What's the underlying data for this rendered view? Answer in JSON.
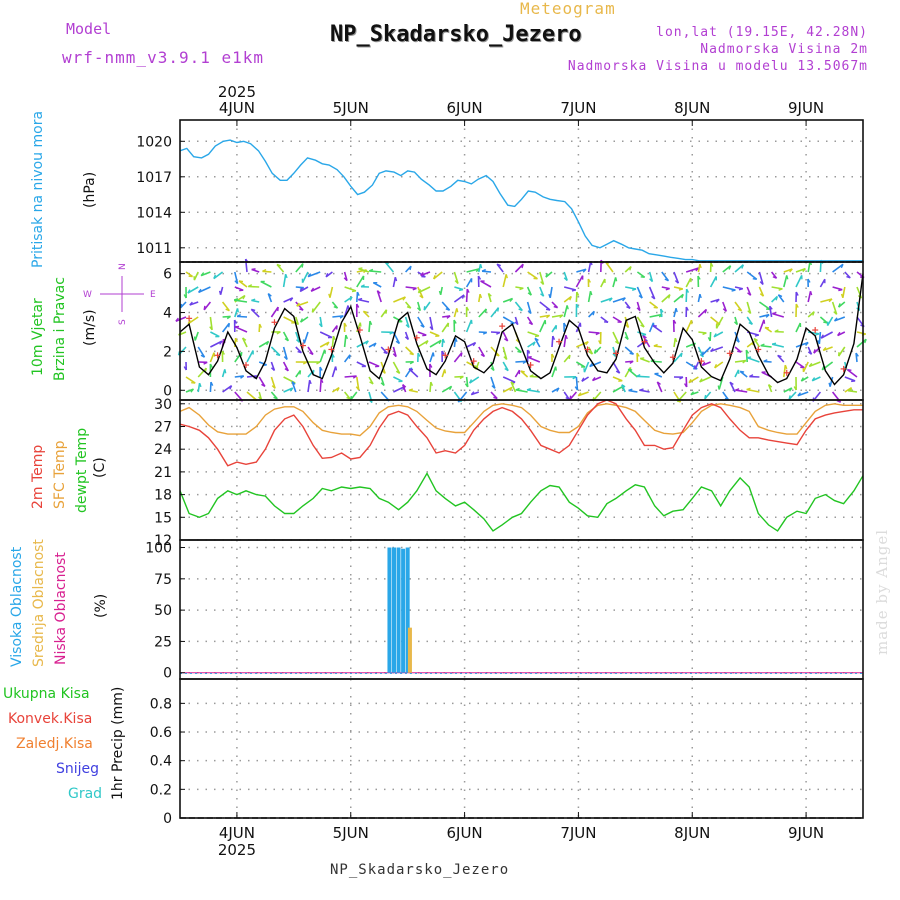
{
  "header": {
    "model_label": "Model",
    "model_name": "wrf-nmm_v3.9.1 e1km",
    "meteogram_title": "Meteogram",
    "station_name": "NP_Skadarsko_Jezero",
    "lonlat": "lon,lat (19.15E, 42.28N)",
    "altitude": "Nadmorska Visina 2m",
    "model_altitude": "Nadmorska Visina u modelu 13.5067m"
  },
  "footer": {
    "station_name": "NP_Skadarsko_Jezero",
    "credit": "made by Angel"
  },
  "colors": {
    "pressure": "#2aa7e8",
    "wind_speed": "#000000",
    "wind_gust_marker": "#e8433a",
    "temp_2m": "#e8433a",
    "temp_sfc": "#e8a23a",
    "dewpoint": "#22c422",
    "cloud_high": "#2aa7e8",
    "cloud_mid": "#e8b84b",
    "cloud_low": "#d82090",
    "precip_total": "#22c422",
    "precip_conv": "#e8433a",
    "precip_frozen": "#f08030",
    "precip_snow": "#4040e0",
    "precip_hail": "#30c8c8",
    "grid": "#9a9a9a"
  },
  "chart_data": [
    {
      "type": "line",
      "panel": "pressure",
      "ylabel": "(hPa)",
      "title_rot": "Pritisak na nivou mora",
      "yticks": [
        1011,
        1014,
        1017,
        1020
      ],
      "ylim": [
        1009.8,
        1021.8
      ],
      "grid": true,
      "x_day_ticks": [
        "4JUN",
        "5JUN",
        "6JUN",
        "7JUN",
        "8JUN",
        "9JUN"
      ],
      "x_year": "2025",
      "x_range_days": [
        3.5,
        9.5
      ],
      "series": [
        {
          "color_key": "pressure",
          "x": [
            3.5,
            3.56,
            3.62,
            3.69,
            3.75,
            3.81,
            3.88,
            3.94,
            4.0,
            4.06,
            4.12,
            4.19,
            4.25,
            4.31,
            4.38,
            4.44,
            4.5,
            4.56,
            4.62,
            4.69,
            4.75,
            4.81,
            4.88,
            4.94,
            5.0,
            5.06,
            5.12,
            5.19,
            5.25,
            5.31,
            5.38,
            5.44,
            5.5,
            5.56,
            5.62,
            5.69,
            5.75,
            5.81,
            5.88,
            5.94,
            6.0,
            6.06,
            6.12,
            6.19,
            6.25,
            6.31,
            6.38,
            6.44,
            6.5,
            6.56,
            6.62,
            6.69,
            6.75,
            6.81,
            6.88,
            6.94,
            7.0,
            7.06,
            7.12,
            7.19,
            7.25,
            7.31,
            7.38,
            7.44,
            7.5,
            7.56,
            7.62,
            7.69,
            7.75,
            7.81,
            7.88,
            7.94,
            8.0,
            8.06,
            8.12,
            8.19,
            8.25,
            8.31,
            8.38,
            8.44,
            8.5,
            8.56,
            8.62,
            8.69,
            8.75,
            8.81,
            8.88,
            8.94,
            9.0,
            9.06,
            9.12,
            9.19,
            9.25,
            9.31,
            9.38,
            9.44,
            9.5
          ],
          "y": [
            1019.2,
            1019.4,
            1018.7,
            1018.6,
            1018.9,
            1019.6,
            1020.0,
            1020.1,
            1019.9,
            1020.0,
            1019.8,
            1019.2,
            1018.3,
            1017.3,
            1016.7,
            1016.7,
            1017.3,
            1018.0,
            1018.6,
            1018.4,
            1018.1,
            1018.0,
            1017.6,
            1017.0,
            1016.2,
            1015.5,
            1015.7,
            1016.3,
            1017.3,
            1017.5,
            1017.4,
            1017.1,
            1017.5,
            1017.4,
            1016.8,
            1016.3,
            1015.8,
            1015.8,
            1016.2,
            1016.7,
            1016.6,
            1016.4,
            1016.8,
            1017.1,
            1016.6,
            1015.6,
            1014.6,
            1014.5,
            1015.1,
            1015.8,
            1015.7,
            1015.3,
            1015.1,
            1015.0,
            1014.9,
            1014.3,
            1013.2,
            1012.0,
            1011.2,
            1011.0,
            1011.3,
            1011.6,
            1011.3,
            1011.0,
            1010.9,
            1010.8,
            1010.5,
            1010.4,
            1010.3,
            1010.2,
            1010.1,
            1010.0,
            1010.0,
            1009.9,
            1009.9,
            1009.9,
            1009.9,
            1009.9,
            1009.9,
            1009.9,
            1009.9,
            1009.9,
            1009.9,
            1009.9,
            1009.9,
            1009.9,
            1009.9,
            1009.9,
            1009.9,
            1009.9,
            1009.9,
            1009.9,
            1009.9,
            1009.9,
            1009.9,
            1009.9,
            1009.9
          ]
        }
      ]
    },
    {
      "type": "line",
      "panel": "wind",
      "ylabel": "(m/s)",
      "title_rot_1": "10m Vjetar",
      "title_rot_2": "Brzina i Pravac",
      "compass_top": "N",
      "compass_bottom": "S",
      "compass_left": "W",
      "compass_right": "E",
      "yticks": [
        0,
        2,
        4,
        6
      ],
      "ylim": [
        -0.5,
        6.6
      ],
      "grid": true,
      "series": [
        {
          "color_key": "wind_speed",
          "x": [
            3.5,
            3.58,
            3.67,
            3.75,
            3.83,
            3.92,
            4.0,
            4.08,
            4.17,
            4.25,
            4.33,
            4.42,
            4.5,
            4.58,
            4.67,
            4.75,
            4.83,
            4.92,
            5.0,
            5.08,
            5.17,
            5.25,
            5.33,
            5.42,
            5.5,
            5.58,
            5.67,
            5.75,
            5.83,
            5.92,
            6.0,
            6.08,
            6.17,
            6.25,
            6.33,
            6.42,
            6.5,
            6.58,
            6.67,
            6.75,
            6.83,
            6.92,
            7.0,
            7.08,
            7.17,
            7.25,
            7.33,
            7.42,
            7.5,
            7.58,
            7.67,
            7.75,
            7.83,
            7.92,
            8.0,
            8.08,
            8.17,
            8.25,
            8.33,
            8.42,
            8.5,
            8.58,
            8.67,
            8.75,
            8.83,
            8.92,
            9.0,
            9.08,
            9.17,
            9.25,
            9.33,
            9.42,
            9.5
          ],
          "y": [
            3.0,
            3.4,
            1.2,
            0.8,
            1.5,
            3.0,
            2.2,
            1.0,
            0.6,
            1.5,
            3.2,
            4.2,
            3.8,
            2.0,
            0.8,
            0.6,
            1.8,
            3.5,
            4.3,
            2.8,
            1.0,
            0.6,
            1.8,
            3.6,
            4.0,
            2.4,
            1.1,
            0.8,
            1.5,
            2.8,
            2.5,
            1.2,
            0.9,
            1.4,
            3.0,
            3.4,
            2.2,
            1.0,
            0.6,
            0.9,
            2.2,
            3.6,
            3.2,
            1.8,
            1.0,
            0.9,
            1.6,
            3.6,
            3.8,
            2.2,
            1.4,
            0.9,
            1.4,
            3.2,
            2.6,
            1.2,
            0.7,
            0.5,
            1.6,
            3.4,
            3.0,
            1.8,
            0.8,
            0.4,
            0.6,
            1.6,
            3.2,
            2.8,
            1.0,
            0.3,
            0.8,
            2.4,
            6.0
          ]
        }
      ]
    },
    {
      "type": "line",
      "panel": "temperature",
      "ylabel": "(C)",
      "title_rot_1": "2m Temp",
      "title_rot_2": "SFC Temp",
      "title_rot_3": "dewpt Temp",
      "yticks": [
        12,
        15,
        18,
        21,
        24,
        27,
        30
      ],
      "ylim": [
        12,
        30.5
      ],
      "grid": true,
      "series": [
        {
          "color_key": "temp_2m",
          "x": [
            3.5,
            3.58,
            3.67,
            3.75,
            3.83,
            3.92,
            4.0,
            4.08,
            4.17,
            4.25,
            4.33,
            4.42,
            4.5,
            4.58,
            4.67,
            4.75,
            4.83,
            4.92,
            5.0,
            5.08,
            5.17,
            5.25,
            5.33,
            5.42,
            5.5,
            5.58,
            5.67,
            5.75,
            5.83,
            5.92,
            6.0,
            6.08,
            6.17,
            6.25,
            6.33,
            6.42,
            6.5,
            6.58,
            6.67,
            6.75,
            6.83,
            6.92,
            7.0,
            7.08,
            7.17,
            7.25,
            7.33,
            7.42,
            7.5,
            7.58,
            7.67,
            7.75,
            7.83,
            7.92,
            8.0,
            8.08,
            8.17,
            8.25,
            8.33,
            8.42,
            8.5,
            8.58,
            8.67,
            8.75,
            8.83,
            8.92,
            9.0,
            9.08,
            9.17,
            9.25,
            9.33,
            9.42,
            9.5
          ],
          "y": [
            27.3,
            27.0,
            26.5,
            25.5,
            24.0,
            21.8,
            22.3,
            22.0,
            22.3,
            24.0,
            26.5,
            28.0,
            28.5,
            27.0,
            24.5,
            22.8,
            22.9,
            23.5,
            22.7,
            22.9,
            24.5,
            26.8,
            28.5,
            29.0,
            28.5,
            27.0,
            25.5,
            23.5,
            23.8,
            23.5,
            24.5,
            26.5,
            28.0,
            29.0,
            29.5,
            29.0,
            28.0,
            26.5,
            24.5,
            24.0,
            23.5,
            24.5,
            26.5,
            28.5,
            30.0,
            30.5,
            30.0,
            28.0,
            26.5,
            24.5,
            24.5,
            24.0,
            24.2,
            26.5,
            28.5,
            29.5,
            30.0,
            29.5,
            28.0,
            26.5,
            25.5,
            25.5,
            25.2,
            25.0,
            24.8,
            24.6,
            26.5,
            28.0,
            28.5,
            28.8,
            29.0,
            29.2,
            29.2
          ]
        },
        {
          "color_key": "temp_sfc",
          "x": [
            3.5,
            3.58,
            3.67,
            3.75,
            3.83,
            3.92,
            4.0,
            4.08,
            4.17,
            4.25,
            4.33,
            4.42,
            4.5,
            4.58,
            4.67,
            4.75,
            4.83,
            4.92,
            5.0,
            5.08,
            5.17,
            5.25,
            5.33,
            5.42,
            5.5,
            5.58,
            5.67,
            5.75,
            5.83,
            5.92,
            6.0,
            6.08,
            6.17,
            6.25,
            6.33,
            6.42,
            6.5,
            6.58,
            6.67,
            6.75,
            6.83,
            6.92,
            7.0,
            7.08,
            7.17,
            7.25,
            7.33,
            7.42,
            7.5,
            7.58,
            7.67,
            7.75,
            7.83,
            7.92,
            8.0,
            8.08,
            8.17,
            8.25,
            8.33,
            8.42,
            8.5,
            8.58,
            8.67,
            8.75,
            8.83,
            8.92,
            9.0,
            9.08,
            9.17,
            9.25,
            9.33,
            9.42,
            9.5
          ],
          "y": [
            29.0,
            29.5,
            28.5,
            27.2,
            26.3,
            26.0,
            26.0,
            26.0,
            27.0,
            28.5,
            29.3,
            29.6,
            29.6,
            29.0,
            27.5,
            26.5,
            26.2,
            26.0,
            26.0,
            25.8,
            27.0,
            28.8,
            29.6,
            29.8,
            29.6,
            29.0,
            27.8,
            26.8,
            26.4,
            26.2,
            26.2,
            27.5,
            29.0,
            29.8,
            30.0,
            29.8,
            29.5,
            28.5,
            27.0,
            26.5,
            26.2,
            26.2,
            27.0,
            28.8,
            29.8,
            30.0,
            29.8,
            29.5,
            29.0,
            27.8,
            26.5,
            26.1,
            26.0,
            26.2,
            27.5,
            29.0,
            29.8,
            30.0,
            29.8,
            29.5,
            29.0,
            27.0,
            26.5,
            26.2,
            26.0,
            26.0,
            27.5,
            29.0,
            29.8,
            30.0,
            29.8,
            29.8,
            29.8
          ]
        },
        {
          "color_key": "dewpoint",
          "x": [
            3.5,
            3.58,
            3.67,
            3.75,
            3.83,
            3.92,
            4.0,
            4.08,
            4.17,
            4.25,
            4.33,
            4.42,
            4.5,
            4.58,
            4.67,
            4.75,
            4.83,
            4.92,
            5.0,
            5.08,
            5.17,
            5.25,
            5.33,
            5.42,
            5.5,
            5.58,
            5.67,
            5.75,
            5.83,
            5.92,
            6.0,
            6.08,
            6.17,
            6.25,
            6.33,
            6.42,
            6.5,
            6.58,
            6.67,
            6.75,
            6.83,
            6.92,
            7.0,
            7.08,
            7.17,
            7.25,
            7.33,
            7.42,
            7.5,
            7.58,
            7.67,
            7.75,
            7.83,
            7.92,
            8.0,
            8.08,
            8.17,
            8.25,
            8.33,
            8.42,
            8.5,
            8.58,
            8.67,
            8.75,
            8.83,
            8.92,
            9.0,
            9.08,
            9.17,
            9.25,
            9.33,
            9.42,
            9.5
          ],
          "y": [
            18.5,
            15.5,
            15.0,
            15.5,
            17.5,
            18.5,
            18.0,
            18.5,
            18.0,
            17.8,
            16.5,
            15.5,
            15.5,
            16.5,
            17.5,
            18.8,
            18.5,
            19.0,
            18.8,
            19.0,
            18.8,
            17.5,
            17.0,
            16.0,
            17.0,
            18.5,
            20.8,
            18.5,
            17.5,
            16.5,
            17.0,
            16.0,
            14.8,
            13.2,
            14.0,
            15.0,
            15.5,
            17.0,
            18.5,
            19.2,
            19.0,
            17.0,
            16.2,
            15.2,
            15.0,
            16.8,
            17.5,
            18.5,
            19.3,
            19.0,
            16.5,
            15.2,
            15.8,
            16.0,
            17.5,
            19.0,
            18.5,
            16.5,
            18.5,
            20.2,
            19.0,
            15.5,
            14.0,
            13.2,
            15.0,
            15.8,
            15.5,
            17.5,
            18.0,
            17.2,
            16.8,
            18.5,
            20.5
          ]
        }
      ]
    },
    {
      "type": "bar",
      "panel": "clouds",
      "ylabel": "(%)",
      "title_rot_1": "Visoka Oblacnost",
      "title_rot_2": "Srednja Oblacnost",
      "title_rot_3": "Niska Oblacnost",
      "yticks": [
        0,
        25,
        50,
        75,
        100
      ],
      "ylim": [
        -5,
        106
      ],
      "grid": true,
      "series": [
        {
          "color_key": "cloud_high",
          "x": [
            5.34,
            5.38,
            5.42,
            5.46,
            5.5
          ],
          "values": [
            100,
            100,
            100,
            99,
            100
          ]
        },
        {
          "color_key": "cloud_mid",
          "x": [
            5.52
          ],
          "values": [
            36
          ]
        }
      ]
    },
    {
      "type": "bar",
      "panel": "precip",
      "ylabel": "1hr Precip (mm)",
      "legend": [
        "Ukupna Kisa",
        "Konvek.Kisa",
        "Zaledj.Kisa",
        "Snijeg",
        "Grad"
      ],
      "yticks": [
        0,
        0.2,
        0.4,
        0.6,
        0.8
      ],
      "ylim": [
        0,
        0.97
      ],
      "grid": true,
      "series": []
    }
  ]
}
